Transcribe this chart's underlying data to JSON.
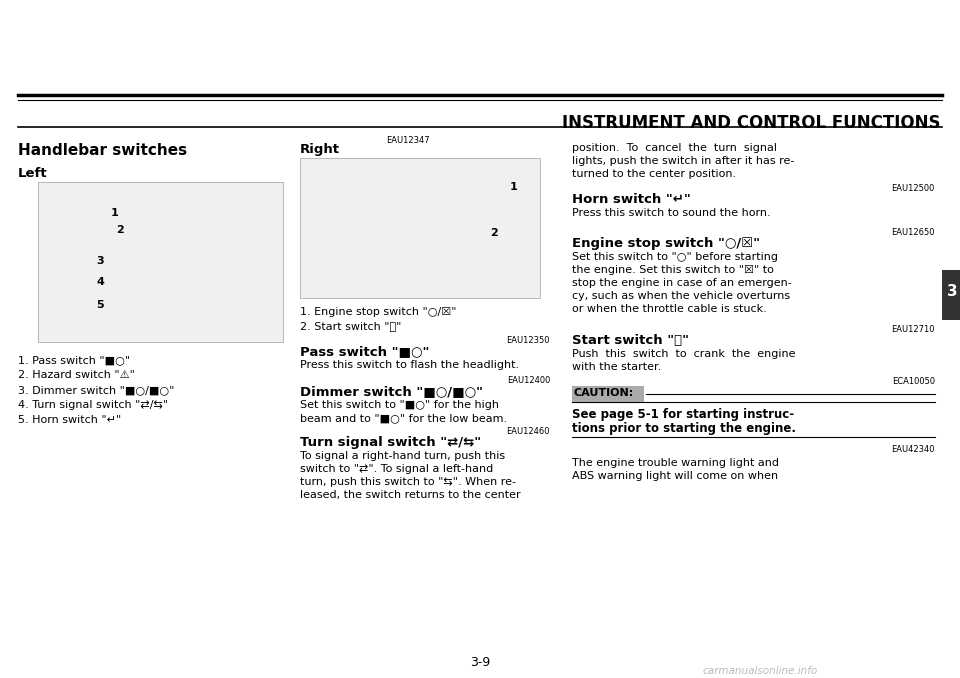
{
  "page_bg": "#ffffff",
  "header_title": "INSTRUMENT AND CONTROL FUNCTIONS",
  "page_number": "3-9",
  "tab_label": "3",
  "section_title": "Handlebar switches",
  "section_ref": "EAU12347",
  "left_label": "Left",
  "right_label": "Right",
  "left_items": [
    "1. Pass switch \"■○\"",
    "2. Hazard switch \"⚠\"",
    "3. Dimmer switch \"■○/■○\"",
    "4. Turn signal switch \"⇄/⇆\"",
    "5. Horn switch \"↵\""
  ],
  "right_items": [
    "1. Engine stop switch \"○/☒\"",
    "2. Start switch \"ⓢ\""
  ],
  "pass_switch_ref": "EAU12350",
  "pass_switch_title": "Pass switch \"■○\"",
  "pass_switch_text": "Press this switch to flash the headlight.",
  "dimmer_ref": "EAU12400",
  "dimmer_title": "Dimmer switch \"■○/■○\"",
  "dimmer_text1": "Set this switch to \"■○\" for the high",
  "dimmer_text2": "beam and to \"■○\" for the low beam.",
  "turn_signal_ref": "EAU12460",
  "turn_signal_title": "Turn signal switch \"⇄/⇆\"",
  "turn_signal_lines": [
    "To signal a right-hand turn, push this",
    "switch to \"⇄\". To signal a left-hand",
    "turn, push this switch to \"⇆\". When re-",
    "leased, the switch returns to the center"
  ],
  "right_col_lines": [
    "position.  To  cancel  the  turn  signal",
    "lights, push the switch in after it has re-",
    "turned to the center position."
  ],
  "horn_ref": "EAU12500",
  "horn_title": "Horn switch \"↵\"",
  "horn_text": "Press this switch to sound the horn.",
  "engine_stop_ref": "EAU12650",
  "engine_stop_title": "Engine stop switch \"○/☒\"",
  "engine_stop_lines": [
    "Set this switch to \"○\" before starting",
    "the engine. Set this switch to \"☒\" to",
    "stop the engine in case of an emergen-",
    "cy, such as when the vehicle overturns",
    "or when the throttle cable is stuck."
  ],
  "start_ref": "EAU12710",
  "start_title": "Start switch \"ⓢ\"",
  "start_lines": [
    "Push  this  switch  to  crank  the  engine",
    "with the starter."
  ],
  "caution_ref": "ECA10050",
  "caution_label": "CAUTION:",
  "caution_lines": [
    "See page 5-1 for starting instruc-",
    "tions prior to starting the engine."
  ],
  "eau_ref2": "EAU42340",
  "final_lines": [
    "The engine trouble warning light and",
    "ABS warning light will come on when"
  ],
  "watermark": "carmanualsonline.info"
}
